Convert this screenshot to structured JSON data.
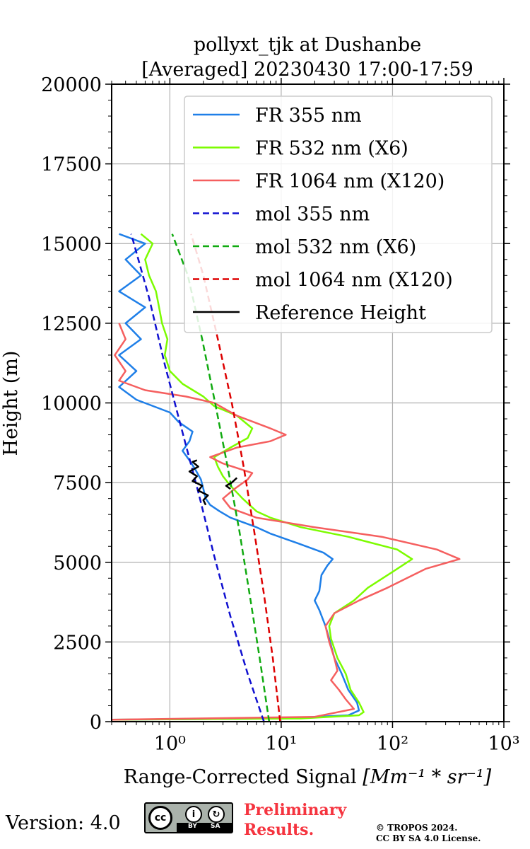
{
  "chart_data": {
    "type": "line",
    "title": "pollyxt_tjk at Dushanbe",
    "subtitle": "[Averaged] 20230430 17:00-17:59",
    "xlabel": "Range-Corrected Signal",
    "xlabel_unit": "[Mm⁻¹ * sr⁻¹]",
    "ylabel": "Height (m)",
    "xscale": "log",
    "xlim": [
      0.3,
      1000
    ],
    "ylim": [
      0,
      20000
    ],
    "x_ticks": [
      {
        "value": 1,
        "label": "10⁰"
      },
      {
        "value": 10,
        "label": "10¹"
      },
      {
        "value": 100,
        "label": "10²"
      },
      {
        "value": 1000,
        "label": "10³"
      }
    ],
    "y_ticks": [
      0,
      2500,
      5000,
      7500,
      10000,
      12500,
      15000,
      17500,
      20000
    ],
    "grid": true,
    "legend_position": "top-right",
    "series": [
      {
        "name": "FR 355 nm",
        "color": "#1f7fe8",
        "style": "solid",
        "points": [
          [
            0.3,
            60
          ],
          [
            10,
            100
          ],
          [
            40,
            200
          ],
          [
            50,
            350
          ],
          [
            48,
            600
          ],
          [
            40,
            1000
          ],
          [
            35,
            1500
          ],
          [
            30,
            2000
          ],
          [
            27,
            2600
          ],
          [
            25,
            3000
          ],
          [
            22,
            3500
          ],
          [
            20,
            3800
          ],
          [
            22,
            4100
          ],
          [
            23,
            4600
          ],
          [
            26,
            4900
          ],
          [
            29,
            5100
          ],
          [
            24,
            5300
          ],
          [
            14,
            5600
          ],
          [
            8,
            5900
          ],
          [
            6,
            6100
          ],
          [
            3.5,
            6400
          ],
          [
            2.8,
            6600
          ],
          [
            2.3,
            6800
          ],
          [
            2.1,
            7000
          ],
          [
            2.0,
            7300
          ],
          [
            1.9,
            7600
          ],
          [
            1.7,
            7900
          ],
          [
            1.5,
            8200
          ],
          [
            1.3,
            8500
          ],
          [
            1.5,
            8800
          ],
          [
            1.6,
            9100
          ],
          [
            1.2,
            9400
          ],
          [
            1.0,
            9700
          ],
          [
            0.5,
            10100
          ],
          [
            0.35,
            10500
          ],
          [
            0.5,
            11000
          ],
          [
            0.35,
            11500
          ],
          [
            0.55,
            12000
          ],
          [
            0.4,
            12500
          ],
          [
            0.6,
            13000
          ],
          [
            0.35,
            13500
          ],
          [
            0.55,
            14000
          ],
          [
            0.4,
            14500
          ],
          [
            0.6,
            15000
          ],
          [
            0.35,
            15300
          ]
        ]
      },
      {
        "name": "FR 532 nm (X6)",
        "color": "#7cfc00",
        "style": "solid",
        "points": [
          [
            0.3,
            60
          ],
          [
            15,
            100
          ],
          [
            50,
            200
          ],
          [
            55,
            300
          ],
          [
            50,
            600
          ],
          [
            42,
            1000
          ],
          [
            38,
            1500
          ],
          [
            32,
            2000
          ],
          [
            28,
            2600
          ],
          [
            27,
            3000
          ],
          [
            30,
            3400
          ],
          [
            45,
            3800
          ],
          [
            60,
            4200
          ],
          [
            100,
            4700
          ],
          [
            150,
            5100
          ],
          [
            110,
            5400
          ],
          [
            40,
            5800
          ],
          [
            15,
            6100
          ],
          [
            8,
            6400
          ],
          [
            6,
            6600
          ],
          [
            4.5,
            7000
          ],
          [
            3.5,
            7400
          ],
          [
            3,
            7700
          ],
          [
            2.7,
            8000
          ],
          [
            2.5,
            8300
          ],
          [
            3.5,
            8600
          ],
          [
            5,
            8900
          ],
          [
            5.5,
            9200
          ],
          [
            4,
            9600
          ],
          [
            2.5,
            9900
          ],
          [
            2,
            10200
          ],
          [
            1.3,
            10600
          ],
          [
            1.0,
            11000
          ],
          [
            0.9,
            11500
          ],
          [
            0.95,
            12000
          ],
          [
            0.85,
            12500
          ],
          [
            0.8,
            13000
          ],
          [
            0.75,
            13500
          ],
          [
            0.65,
            14000
          ],
          [
            0.6,
            14500
          ],
          [
            0.7,
            15000
          ],
          [
            0.55,
            15300
          ]
        ]
      },
      {
        "name": "FR 1064 nm (X120)",
        "color": "#f55f5f",
        "style": "solid",
        "points": [
          [
            0.3,
            60
          ],
          [
            20,
            150
          ],
          [
            45,
            400
          ],
          [
            38,
            700
          ],
          [
            33,
            1000
          ],
          [
            28,
            1300
          ],
          [
            32,
            1600
          ],
          [
            30,
            2000
          ],
          [
            27,
            2500
          ],
          [
            25,
            3000
          ],
          [
            30,
            3400
          ],
          [
            50,
            3800
          ],
          [
            90,
            4200
          ],
          [
            200,
            4800
          ],
          [
            400,
            5100
          ],
          [
            250,
            5400
          ],
          [
            80,
            5800
          ],
          [
            20,
            6100
          ],
          [
            6,
            6400
          ],
          [
            3.5,
            6700
          ],
          [
            3,
            7000
          ],
          [
            3.8,
            7300
          ],
          [
            5,
            7600
          ],
          [
            5.5,
            7800
          ],
          [
            3,
            8100
          ],
          [
            2.3,
            8300
          ],
          [
            4,
            8600
          ],
          [
            8,
            8800
          ],
          [
            11,
            9000
          ],
          [
            8,
            9200
          ],
          [
            4,
            9600
          ],
          [
            2.5,
            10000
          ],
          [
            1.4,
            10200
          ],
          [
            0.6,
            10400
          ],
          [
            0.35,
            10700
          ],
          [
            0.4,
            11000
          ],
          [
            0.32,
            11500
          ],
          [
            0.4,
            12000
          ],
          [
            0.35,
            12500
          ]
        ]
      },
      {
        "name": "mol 355 nm",
        "color": "#1010d0",
        "style": "dashed",
        "points": [
          [
            7.0,
            0
          ],
          [
            5.0,
            1500
          ],
          [
            3.5,
            3300
          ],
          [
            2.5,
            5200
          ],
          [
            1.8,
            7200
          ],
          [
            1.25,
            9300
          ],
          [
            0.9,
            11200
          ],
          [
            0.65,
            13300
          ],
          [
            0.45,
            15300
          ]
        ]
      },
      {
        "name": "mol 532 nm (X6)",
        "color": "#10aa10",
        "style": "dashed",
        "points": [
          [
            7.8,
            0
          ],
          [
            6.4,
            2000
          ],
          [
            5.2,
            4000
          ],
          [
            4.2,
            6000
          ],
          [
            3.3,
            8000
          ],
          [
            2.55,
            10000
          ],
          [
            1.95,
            12000
          ],
          [
            1.45,
            14000
          ],
          [
            1.05,
            15300
          ]
        ]
      },
      {
        "name": "mol 1064 nm (X120)",
        "color": "#dd0000",
        "style": "dashed",
        "points": [
          [
            9.8,
            0
          ],
          [
            8.4,
            2000
          ],
          [
            7.0,
            4000
          ],
          [
            5.7,
            6000
          ],
          [
            4.6,
            8000
          ],
          [
            3.6,
            10000
          ],
          [
            2.7,
            12000
          ],
          [
            2.0,
            14000
          ],
          [
            1.55,
            15300
          ]
        ]
      },
      {
        "name": "Reference Height",
        "color": "#000000",
        "style": "solid",
        "points": [
          [
            2.1,
            6800
          ],
          [
            2.0,
            6950
          ],
          [
            2.2,
            7100
          ],
          [
            1.8,
            7250
          ],
          [
            1.95,
            7400
          ],
          [
            1.6,
            7550
          ],
          [
            1.75,
            7700
          ],
          [
            1.5,
            7850
          ],
          [
            1.8,
            8000
          ],
          [
            1.6,
            8150
          ],
          [
            1.75,
            8200
          ]
        ]
      },
      {
        "name": "",
        "color": "#000000",
        "style": "solid",
        "points": [
          [
            4.0,
            7650
          ],
          [
            3.6,
            7500
          ],
          [
            3.2,
            7400
          ],
          [
            3.5,
            7300
          ]
        ]
      }
    ]
  },
  "footer": {
    "version": "Version: 4.0",
    "license_cc": "cc",
    "license_by": "BY",
    "license_sa": "SA",
    "preliminary_line1": "Preliminary",
    "preliminary_line2": "Results.",
    "copyright_line1": "© TROPOS 2024.",
    "copyright_line2": "CC BY SA 4.0 License."
  }
}
